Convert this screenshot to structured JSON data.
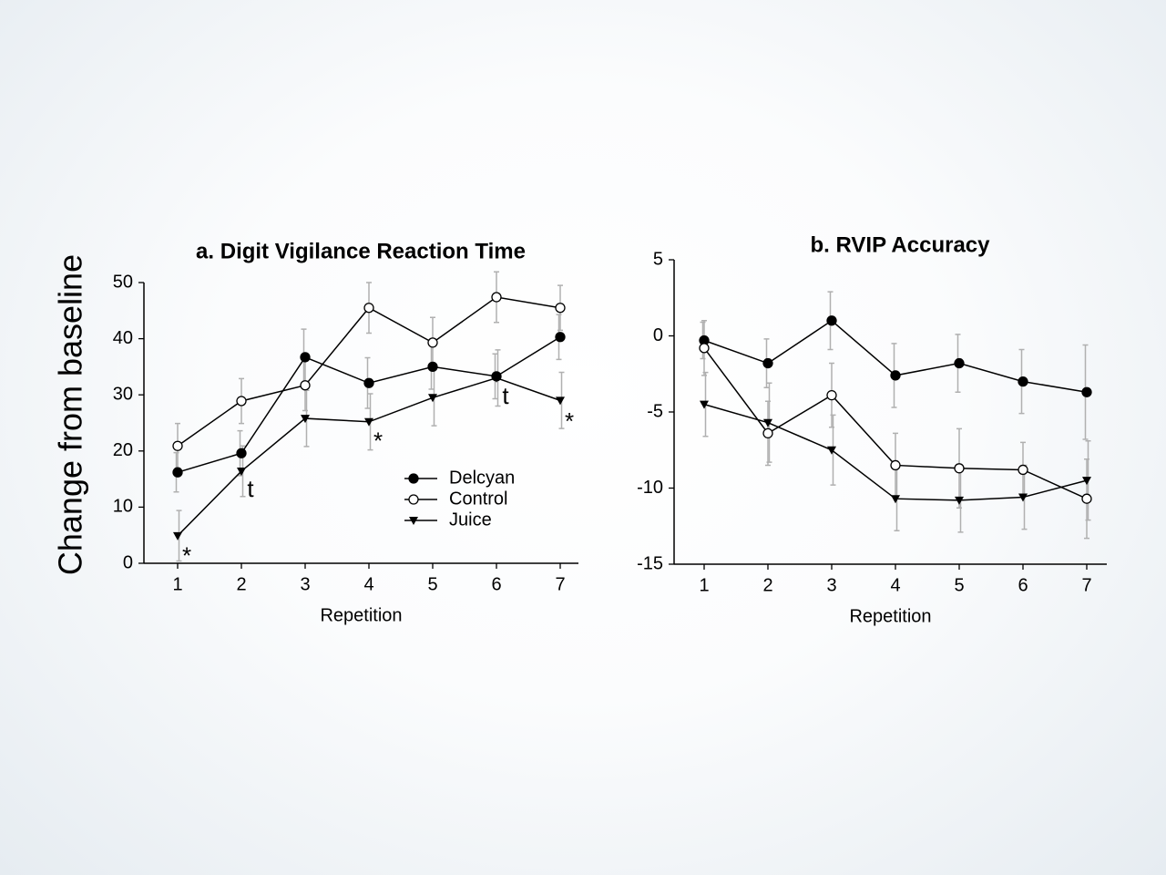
{
  "chart_data": [
    {
      "type": "line",
      "title": "a. Digit Vigilance Reaction Time",
      "ylabel": "Change from baseline",
      "xlabel": "Repetition",
      "x": [
        1,
        2,
        3,
        4,
        5,
        6,
        7
      ],
      "xlim": [
        0.5,
        7.5
      ],
      "xticks": [
        1,
        2,
        3,
        4,
        5,
        6,
        7
      ],
      "ylim": [
        0,
        50
      ],
      "yticks": [
        0,
        10,
        20,
        30,
        40,
        50
      ],
      "legend": "lower right",
      "series": [
        {
          "name": "Delcyan",
          "color": "#000000",
          "marker": "circle-filled",
          "values": [
            16.2,
            19.6,
            36.7,
            32.1,
            35,
            33.3,
            40.3
          ],
          "errors": [
            3.5,
            4,
            5,
            4.5,
            4,
            4,
            4
          ]
        },
        {
          "name": "Control",
          "color": "#000000",
          "marker": "circle-open",
          "values": [
            20.9,
            28.9,
            31.7,
            45.5,
            39.3,
            47.4,
            45.5
          ],
          "errors": [
            4,
            4,
            4.5,
            4.5,
            4.5,
            4.5,
            4
          ]
        },
        {
          "name": "Juice",
          "color": "#000000",
          "marker": "triangle-down",
          "values": [
            4.9,
            16.4,
            25.8,
            25.2,
            29.5,
            33,
            29
          ],
          "errors": [
            4.5,
            4.5,
            5,
            5,
            5,
            5,
            5
          ]
        }
      ],
      "annotations": [
        {
          "text": "*",
          "x": 1,
          "y": 1
        },
        {
          "text": "t",
          "x": 2,
          "y": 13
        },
        {
          "text": "*",
          "x": 4,
          "y": 21.5
        },
        {
          "text": "t",
          "x": 6,
          "y": 29.5
        },
        {
          "text": "*",
          "x": 7,
          "y": 25
        }
      ]
    },
    {
      "type": "line",
      "title": "b. RVIP Accuracy",
      "xlabel": "Repetition",
      "x": [
        1,
        2,
        3,
        4,
        5,
        6,
        7
      ],
      "xlim": [
        0.5,
        7.5
      ],
      "xticks": [
        1,
        2,
        3,
        4,
        5,
        6,
        7
      ],
      "ylim": [
        -15,
        5
      ],
      "yticks": [
        -15,
        -10,
        -5,
        0,
        5
      ],
      "series": [
        {
          "name": "Delcyan",
          "color": "#000000",
          "marker": "circle-filled",
          "values": [
            -0.3,
            -1.8,
            1.0,
            -2.6,
            -1.8,
            -3.0,
            -3.7
          ],
          "errors": [
            1.2,
            1.6,
            1.9,
            2.1,
            1.9,
            2.1,
            3.1
          ]
        },
        {
          "name": "Control",
          "color": "#000000",
          "marker": "circle-open",
          "values": [
            -0.8,
            -6.4,
            -3.9,
            -8.5,
            -8.7,
            -8.8,
            -10.7
          ],
          "errors": [
            1.8,
            2.1,
            2.1,
            2.1,
            2.6,
            1.8,
            2.6
          ]
        },
        {
          "name": "Juice",
          "color": "#000000",
          "marker": "triangle-down",
          "values": [
            -4.5,
            -5.7,
            -7.5,
            -10.7,
            -10.8,
            -10.6,
            -9.5
          ],
          "errors": [
            2.1,
            2.6,
            2.3,
            2.1,
            2.1,
            2.1,
            2.6
          ]
        }
      ]
    }
  ]
}
